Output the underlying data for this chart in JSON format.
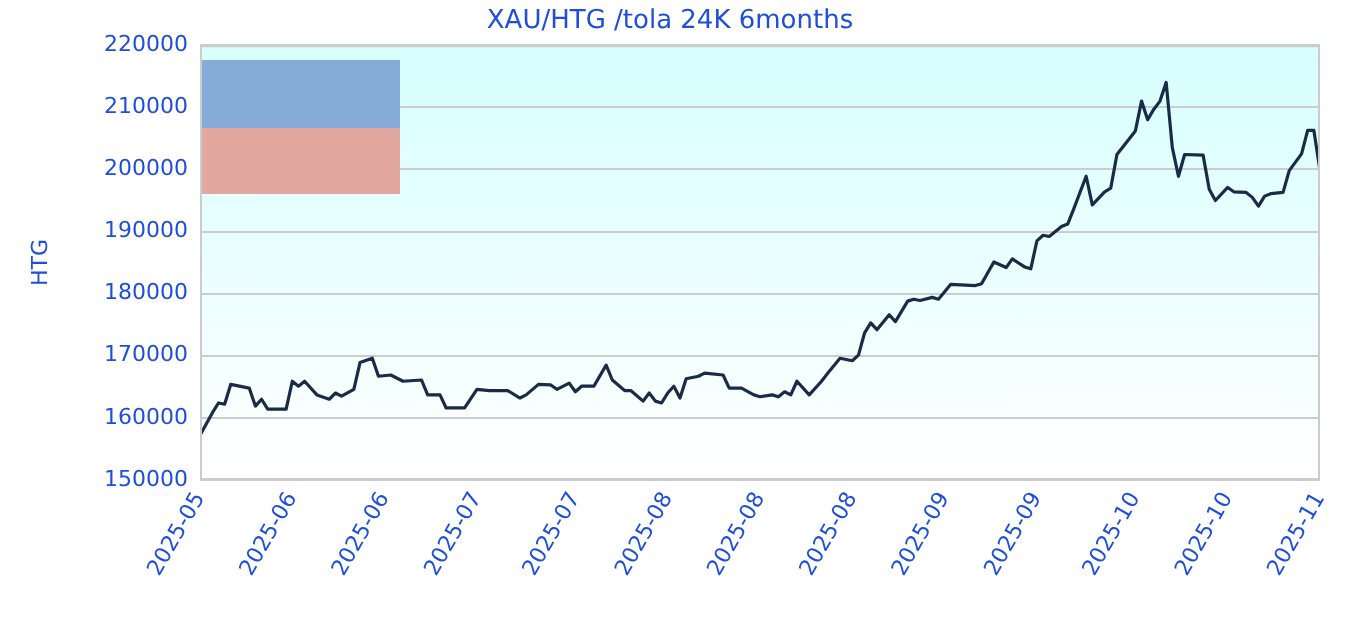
{
  "chart_data": {
    "type": "line",
    "title": "XAU/HTG /tola 24K 6months",
    "ylabel": "HTG",
    "x": [
      "2025-05-04",
      "2025-05-06",
      "2025-05-07",
      "2025-05-08",
      "2025-05-09",
      "2025-05-12",
      "2025-05-13",
      "2025-05-14",
      "2025-05-15",
      "2025-05-18",
      "2025-05-19",
      "2025-05-20",
      "2025-05-21",
      "2025-05-23",
      "2025-05-25",
      "2025-05-26",
      "2025-05-27",
      "2025-05-29",
      "2025-05-30",
      "2025-06-01",
      "2025-06-02",
      "2025-06-04",
      "2025-06-06",
      "2025-06-09",
      "2025-06-10",
      "2025-06-12",
      "2025-06-13",
      "2025-06-16",
      "2025-06-18",
      "2025-06-20",
      "2025-06-23",
      "2025-06-25",
      "2025-06-26",
      "2025-06-28",
      "2025-06-30",
      "2025-07-01",
      "2025-07-03",
      "2025-07-04",
      "2025-07-05",
      "2025-07-07",
      "2025-07-09",
      "2025-07-10",
      "2025-07-12",
      "2025-07-13",
      "2025-07-15",
      "2025-07-16",
      "2025-07-17",
      "2025-07-18",
      "2025-07-19",
      "2025-07-20",
      "2025-07-21",
      "2025-07-22",
      "2025-07-24",
      "2025-07-25",
      "2025-07-28",
      "2025-07-29",
      "2025-07-31",
      "2025-08-02",
      "2025-08-03",
      "2025-08-05",
      "2025-08-06",
      "2025-08-07",
      "2025-08-08",
      "2025-08-09",
      "2025-08-11",
      "2025-08-13",
      "2025-08-14",
      "2025-08-16",
      "2025-08-18",
      "2025-08-19",
      "2025-08-20",
      "2025-08-21",
      "2025-08-22",
      "2025-08-24",
      "2025-08-25",
      "2025-08-27",
      "2025-08-28",
      "2025-08-29",
      "2025-08-31",
      "2025-09-01",
      "2025-09-03",
      "2025-09-07",
      "2025-09-08",
      "2025-09-10",
      "2025-09-12",
      "2025-09-13",
      "2025-09-15",
      "2025-09-16",
      "2025-09-17",
      "2025-09-18",
      "2025-09-19",
      "2025-09-21",
      "2025-09-22",
      "2025-09-23",
      "2025-09-25",
      "2025-09-26",
      "2025-09-28",
      "2025-09-29",
      "2025-09-30",
      "2025-10-03",
      "2025-10-04",
      "2025-10-05",
      "2025-10-06",
      "2025-10-07",
      "2025-10-08",
      "2025-10-09",
      "2025-10-10",
      "2025-10-11",
      "2025-10-14",
      "2025-10-15",
      "2025-10-16",
      "2025-10-18",
      "2025-10-19",
      "2025-10-21",
      "2025-10-22",
      "2025-10-23",
      "2025-10-24",
      "2025-10-25",
      "2025-10-27",
      "2025-10-28",
      "2025-10-30",
      "2025-10-31",
      "2025-11-01",
      "2025-11-02"
    ],
    "series": [
      {
        "color": "#1a2b48",
        "values": [
          157200,
          160800,
          162400,
          162200,
          165400,
          164800,
          161900,
          163000,
          161400,
          161400,
          165900,
          165100,
          165900,
          163700,
          163000,
          164000,
          163500,
          164600,
          168900,
          169600,
          166700,
          166900,
          165900,
          166100,
          163700,
          163700,
          161600,
          161600,
          164600,
          164400,
          164400,
          163200,
          163700,
          165400,
          165300,
          164600,
          165600,
          164200,
          165100,
          165100,
          168500,
          166100,
          164400,
          164400,
          162700,
          164000,
          162700,
          162400,
          164000,
          165100,
          163200,
          166300,
          166700,
          167200,
          166900,
          164800,
          164800,
          163700,
          163400,
          163700,
          163400,
          164200,
          163700,
          165900,
          163700,
          165900,
          167200,
          169600,
          169200,
          170100,
          173700,
          175300,
          174200,
          176600,
          175500,
          178800,
          179100,
          178900,
          179400,
          179100,
          181500,
          181300,
          181600,
          185100,
          184200,
          185600,
          184300,
          184000,
          188500,
          189400,
          189200,
          190800,
          191200,
          193700,
          198900,
          194300,
          196400,
          197000,
          202400,
          206200,
          211000,
          208000,
          209700,
          211000,
          214000,
          203500,
          198900,
          202400,
          202300,
          196800,
          195000,
          197100,
          196400,
          196300,
          195500,
          194100,
          195700,
          196100,
          196300,
          199800,
          202500,
          206300,
          206300,
          199800
        ]
      }
    ],
    "xlim": [
      "2025-05-04",
      "2025-11-02"
    ],
    "xticks": [
      {
        "value": "2025-05-04",
        "label": "2025-05"
      },
      {
        "value": "2025-05-19",
        "label": "2025-06"
      },
      {
        "value": "2025-06-03",
        "label": "2025-06"
      },
      {
        "value": "2025-06-18",
        "label": "2025-07"
      },
      {
        "value": "2025-07-04",
        "label": "2025-07"
      },
      {
        "value": "2025-07-19",
        "label": "2025-08"
      },
      {
        "value": "2025-08-03",
        "label": "2025-08"
      },
      {
        "value": "2025-08-18",
        "label": "2025-08"
      },
      {
        "value": "2025-09-02",
        "label": "2025-09"
      },
      {
        "value": "2025-09-17",
        "label": "2025-09"
      },
      {
        "value": "2025-10-03",
        "label": "2025-10"
      },
      {
        "value": "2025-10-18",
        "label": "2025-10"
      },
      {
        "value": "2025-11-02",
        "label": "2025-11"
      }
    ],
    "ylim": [
      150000,
      220000
    ],
    "yticks": [
      150000,
      160000,
      170000,
      180000,
      190000,
      200000,
      210000,
      220000
    ],
    "grid": "y",
    "legend": false,
    "marker": "none",
    "line_style": "solid"
  }
}
